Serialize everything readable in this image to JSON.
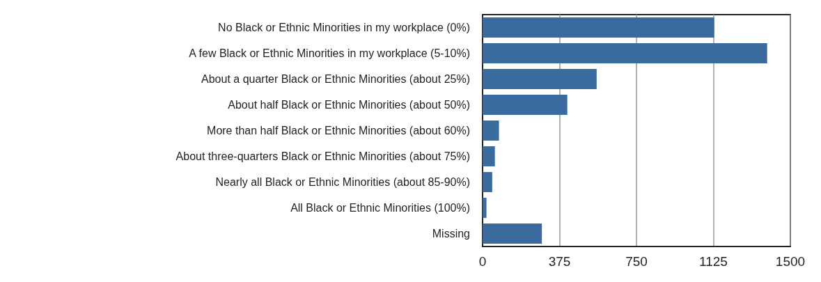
{
  "chart_data": {
    "type": "bar",
    "orientation": "horizontal",
    "categories": [
      "No Black or Ethnic Minorities in my workplace (0%)",
      "A few Black or Ethnic Minorities in my workplace (5-10%)",
      "About a quarter Black or Ethnic Minorities (about 25%)",
      "About half Black or Ethnic Minorities (about 50%)",
      "More than half Black or Ethnic Minorities (about 60%)",
      "About three-quarters Black or Ethnic Minorities (about 75%)",
      "Nearly all Black or Ethnic Minorities (about 85-90%)",
      "All Black or Ethnic Minorities (100%)",
      "Missing"
    ],
    "values": [
      1129,
      1387,
      556,
      413,
      80,
      60,
      47,
      19,
      289
    ],
    "color": "#3a6b9e",
    "xlim": [
      0,
      1500
    ],
    "xticks": [
      0,
      375,
      750,
      1125,
      1500
    ],
    "grid": "x"
  }
}
